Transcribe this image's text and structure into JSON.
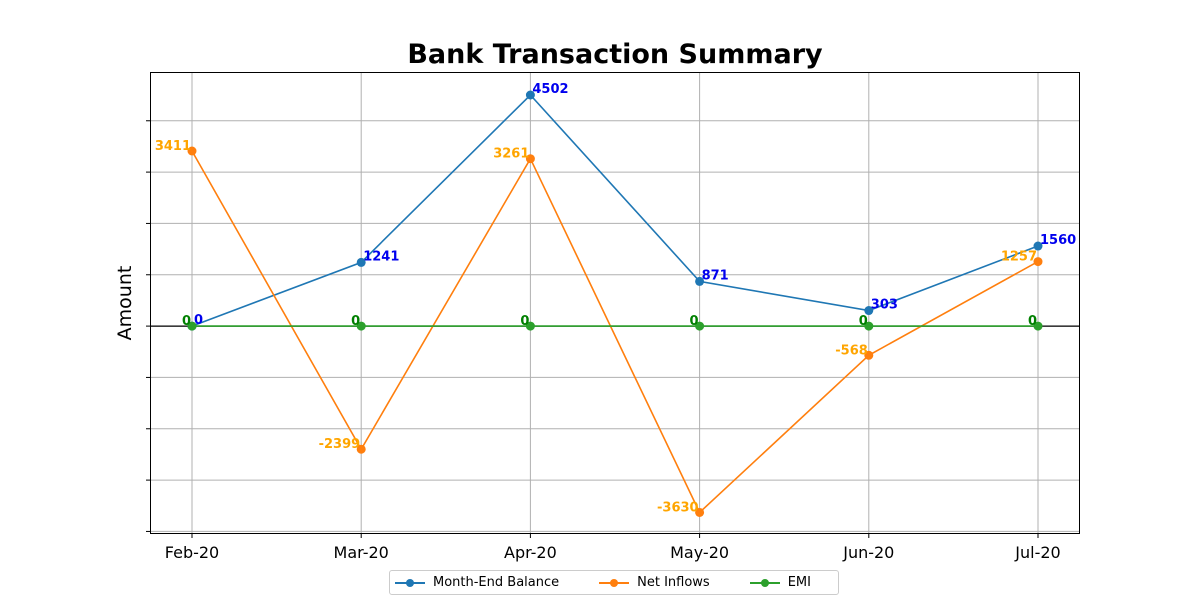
{
  "chart_data": {
    "type": "line",
    "title": "Bank Transaction Summary",
    "xlabel": "",
    "ylabel": "Amount",
    "categories": [
      "Feb-20",
      "Mar-20",
      "Apr-20",
      "May-20",
      "Jun-20",
      "Jul-20"
    ],
    "ylim": [
      -4050,
      4950
    ],
    "grid": true,
    "legend_position": "bottom-center",
    "series": [
      {
        "name": "Month-End Balance",
        "values": [
          0,
          1241,
          4502,
          871,
          303,
          1560
        ],
        "color": "#1f77b4",
        "label_color": "#0000ee"
      },
      {
        "name": "Net Inflows",
        "values": [
          3411,
          -2399,
          3261,
          -3630,
          -568,
          1257
        ],
        "color": "#ff7f0e",
        "label_color": "#ffa500"
      },
      {
        "name": "EMI",
        "values": [
          0,
          0,
          0,
          0,
          0,
          0
        ],
        "color": "#2ca02c",
        "label_color": "#008000"
      }
    ]
  }
}
